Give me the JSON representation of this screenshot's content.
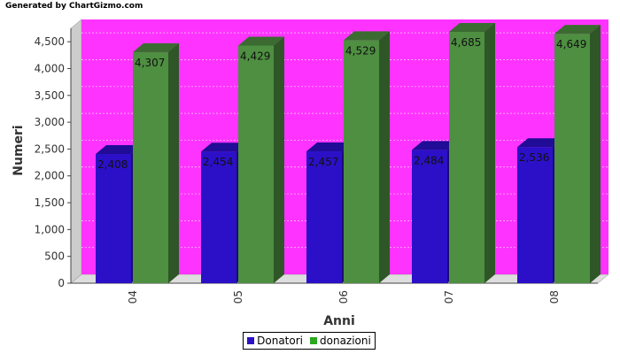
{
  "header": {
    "generated_by": "Generated by  ChartGizmo.com"
  },
  "chart_data": {
    "type": "bar",
    "title": "",
    "xlabel": "Anni",
    "ylabel": "Numeri",
    "categories": [
      "04",
      "05",
      "06",
      "07",
      "08"
    ],
    "series": [
      {
        "name": "Donatori",
        "values": [
          2408,
          2454,
          2457,
          2484,
          2536
        ],
        "labels": [
          "2,408",
          "2,454",
          "2,457",
          "2,484",
          "2,536"
        ],
        "color": "#2b10c8"
      },
      {
        "name": "donazioni",
        "values": [
          4307,
          4429,
          4529,
          4685,
          4649
        ],
        "labels": [
          "4,307",
          "4,429",
          "4,529",
          "4,685",
          "4,649"
        ],
        "color": "#4e8f41"
      }
    ],
    "ylim": [
      0,
      4750
    ],
    "yticks": [
      0,
      500,
      1000,
      1500,
      2000,
      2500,
      3000,
      3500,
      4000,
      4500
    ],
    "ytick_labels": [
      "0",
      "500",
      "1,000",
      "1,500",
      "2,000",
      "2,500",
      "3,000",
      "3,500",
      "4,000",
      "4,500"
    ],
    "grid": true,
    "legend_position": "bottom-center",
    "plot_background": "#ff33ff"
  }
}
